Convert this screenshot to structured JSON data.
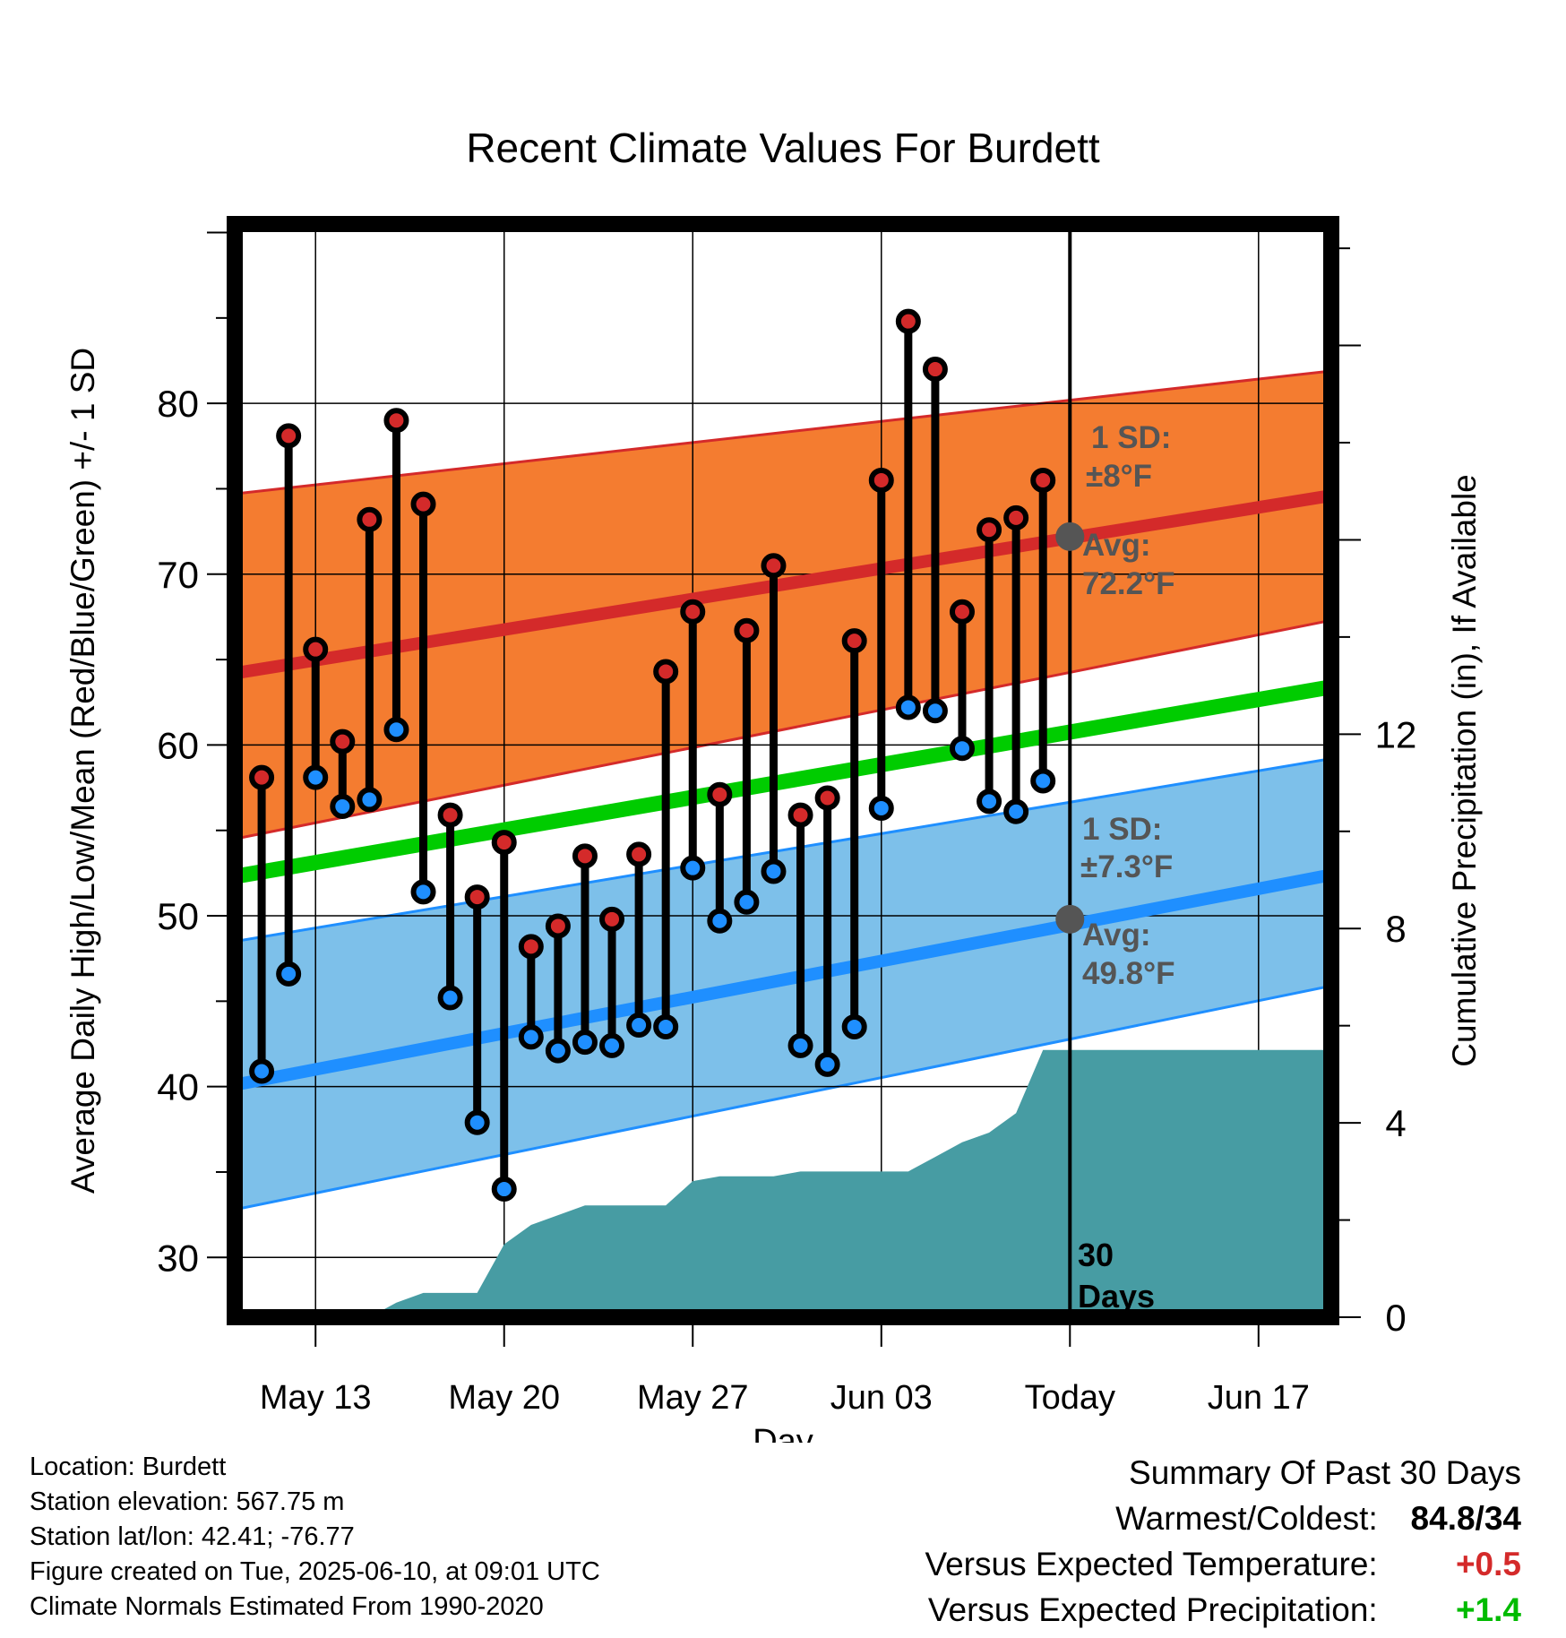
{
  "chart_data": {
    "type": "line",
    "title": "Recent Climate Values For Burdett",
    "xlabel": "Day",
    "ylabel": "Average Daily High/Low/Mean (Red/Blue/Green) +/- 1 SD",
    "ylabel_right": "Cumulative Precipitation (in), If Available",
    "x_ticks": [
      "May 13",
      "May 20",
      "May 27",
      "Jun 03",
      "Today",
      "Jun 17"
    ],
    "x_tick_days": [
      13,
      20,
      27,
      34,
      41,
      48
    ],
    "xlim": [
      9.9,
      50.7
    ],
    "ylim": [
      26.5,
      90.5
    ],
    "y_ticks": [
      30,
      40,
      50,
      60,
      70,
      80
    ],
    "y2lim": [
      0,
      22.5
    ],
    "y2_ticks": [
      0,
      4,
      8,
      12
    ],
    "grid": true,
    "today_day": 41,
    "today_label_number": "30",
    "today_label_text": "Days",
    "days": [
      11,
      12,
      13,
      14,
      15,
      16,
      17,
      18,
      19,
      20,
      21,
      22,
      23,
      24,
      25,
      26,
      27,
      28,
      29,
      30,
      31,
      32,
      33,
      34,
      35,
      36,
      37,
      38,
      39,
      40
    ],
    "highs": [
      58.1,
      78.1,
      65.6,
      60.2,
      73.2,
      79.0,
      74.1,
      55.9,
      51.1,
      54.3,
      48.2,
      49.4,
      53.5,
      49.8,
      53.6,
      64.3,
      67.8,
      57.1,
      66.7,
      70.5,
      55.9,
      56.9,
      66.1,
      75.5,
      84.8,
      82.0,
      67.8,
      72.6,
      73.3,
      75.5
    ],
    "lows": [
      40.9,
      46.6,
      58.1,
      56.4,
      56.8,
      60.9,
      51.4,
      45.2,
      37.9,
      34.0,
      42.9,
      42.1,
      42.6,
      42.4,
      43.6,
      43.5,
      52.8,
      49.7,
      50.8,
      52.6,
      42.4,
      41.3,
      43.5,
      56.3,
      62.2,
      62.0,
      59.8,
      56.7,
      56.1,
      57.9
    ],
    "normal_high": {
      "name": "Avg: 72.2°F",
      "x": [
        10,
        50.7
      ],
      "y": [
        64.2,
        74.6
      ],
      "sd": "1 SD: ±8°F",
      "band_upper": [
        74.7,
        81.9
      ],
      "band_lower": [
        54.5,
        67.3
      ]
    },
    "normal_low": {
      "name": "Avg: 49.8°F",
      "x": [
        10,
        50.7
      ],
      "y": [
        40.1,
        52.4
      ],
      "sd": "1 SD: ±7.3°F",
      "band_upper": [
        48.5,
        59.2
      ],
      "band_lower": [
        32.8,
        45.9
      ]
    },
    "normal_mean": {
      "x": [
        10,
        50.7
      ],
      "y": [
        52.3,
        63.4
      ]
    },
    "today_high_avg": 72.2,
    "today_low_avg": 49.8,
    "precip": {
      "x": [
        10,
        15,
        16,
        17,
        18,
        19,
        20,
        21,
        22,
        23,
        24,
        25,
        26,
        27,
        28,
        29,
        30,
        31,
        32,
        33,
        34,
        35,
        36,
        37,
        38,
        39,
        40,
        41,
        50.7
      ],
      "y": [
        0,
        0,
        0.3,
        0.5,
        0.5,
        0.5,
        1.5,
        1.9,
        2.1,
        2.3,
        2.3,
        2.3,
        2.3,
        2.8,
        2.9,
        2.9,
        2.9,
        3.0,
        3.0,
        3.0,
        3.0,
        3.0,
        3.3,
        3.6,
        3.8,
        4.2,
        5.5,
        5.5,
        5.5
      ]
    },
    "colors": {
      "high": "#d42a2a",
      "low": "#1f8fff",
      "mean": "#00cc00",
      "high_band": "#f47c30",
      "low_band": "#7dc0ea",
      "precip": "#479ca3",
      "today_dot": "#555555"
    }
  },
  "footer": {
    "location": "Location: Burdett",
    "elevation": "Station elevation: 567.75 m",
    "latlon": "Station lat/lon: 42.41; -76.77",
    "created": "Figure created on Tue, 2025-06-10, at 09:01 UTC",
    "normals": "Climate Normals Estimated From 1990-2020"
  },
  "summary": {
    "title": "Summary Of Past 30 Days",
    "warmest_label": "Warmest/Coldest:",
    "warmest_value": "84.8/34",
    "temp_label": "Versus Expected Temperature:",
    "temp_value": "+0.5",
    "temp_color": "#d42a2a",
    "precip_label": "Versus Expected Precipitation:",
    "precip_value": "+1.4",
    "precip_color": "#00bb00"
  }
}
